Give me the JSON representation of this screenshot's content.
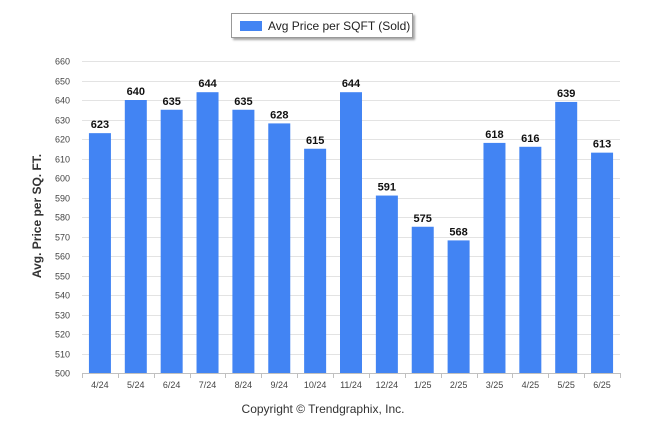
{
  "legend": {
    "label": "Avg Price per SQFT (Sold)",
    "color": "#4284f3"
  },
  "footer": {
    "copyright": "Copyright © Trendgraphix, Inc."
  },
  "chart_data": {
    "type": "bar",
    "title": "",
    "xlabel": "",
    "ylabel": "Avg. Price per SQ. FT.",
    "ylim": [
      500,
      660
    ],
    "yticks": [
      500,
      510,
      520,
      530,
      540,
      550,
      560,
      570,
      580,
      590,
      600,
      610,
      620,
      630,
      640,
      650,
      660
    ],
    "grid": true,
    "legend_position": "top-center",
    "categories": [
      "4/24",
      "5/24",
      "6/24",
      "7/24",
      "8/24",
      "9/24",
      "10/24",
      "11/24",
      "12/24",
      "1/25",
      "2/25",
      "3/25",
      "4/25",
      "5/25",
      "6/25"
    ],
    "series": [
      {
        "name": "Avg Price per SQFT (Sold)",
        "color": "#4284f3",
        "values": [
          623,
          640,
          635,
          644,
          635,
          628,
          615,
          644,
          591,
          575,
          568,
          618,
          616,
          639,
          613
        ]
      }
    ],
    "data_labels": [
      "623",
      "640",
      "635",
      "644",
      "635",
      "628",
      "615",
      "644",
      "591",
      "575",
      "568",
      "618",
      "616",
      "639",
      "613"
    ]
  }
}
